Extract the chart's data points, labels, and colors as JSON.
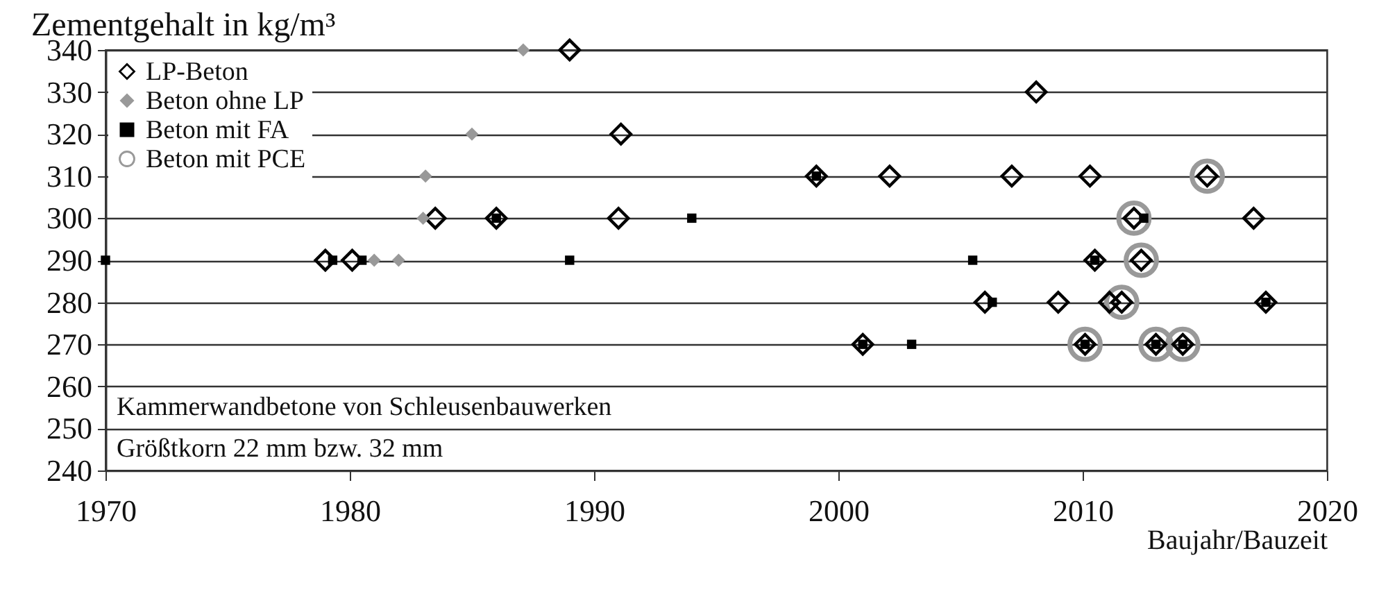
{
  "chart_data": {
    "type": "scatter",
    "ylabel": "Zementgehalt in kg/m³",
    "xlabel": "Baujahr/Bauzeit",
    "xlim": [
      1970,
      2020
    ],
    "xticks": [
      1970,
      1980,
      1990,
      2000,
      2010,
      2020
    ],
    "ylim": [
      240,
      340
    ],
    "yticks": [
      240,
      250,
      260,
      270,
      280,
      290,
      300,
      310,
      320,
      330,
      340
    ],
    "grid": "y",
    "legend": "top left",
    "annotations": [
      "Kammerwandbetone von Schleusenbauwerken",
      "Größtkorn 22 mm bzw. 32 mm"
    ],
    "series": [
      {
        "name": "LP-Beton",
        "color": "#000000",
        "marker": "diamond",
        "x": [
          1989,
          2008.1,
          1991.1,
          1999.1,
          2002.1,
          2007.1,
          2010.3,
          2015.1,
          1983.5,
          1986,
          1991,
          2012.1,
          2017,
          1979,
          1980.1,
          2010.5,
          2012.4,
          2006,
          2009,
          2011.1,
          2011.6,
          2017.5,
          2001,
          2010.1,
          2013,
          2014.1
        ],
        "values": [
          340,
          330,
          320,
          310,
          310,
          310,
          310,
          310,
          300,
          300,
          300,
          300,
          300,
          290,
          290,
          290,
          290,
          280,
          280,
          280,
          280,
          280,
          270,
          270,
          270,
          270
        ]
      },
      {
        "name": "Beton ohne LP",
        "color": "#999999",
        "marker": "diamond",
        "x": [
          1987.1,
          1985,
          1983.1,
          1983,
          1981,
          1982
        ],
        "values": [
          340,
          320,
          310,
          300,
          290,
          290
        ]
      },
      {
        "name": "Beton mit FA",
        "color": "#000000",
        "marker": "square",
        "x": [
          1970,
          1979.3,
          1980.5,
          1989,
          2005.5,
          2010.5,
          1986,
          1994,
          2012.5,
          1999.1,
          2006.3,
          2017.5,
          2001,
          2003,
          2010.1,
          2013,
          2014.1
        ],
        "values": [
          290,
          290,
          290,
          290,
          290,
          290,
          300,
          300,
          300,
          310,
          280,
          280,
          270,
          270,
          270,
          270,
          270
        ]
      },
      {
        "name": "Beton mit PCE",
        "color": "#999999",
        "marker": "circle",
        "x": [
          2015.1,
          2012.1,
          2012.4,
          2011.6,
          2010.1,
          2013,
          2014.1
        ],
        "values": [
          310,
          300,
          290,
          280,
          270,
          270,
          270
        ]
      }
    ]
  }
}
